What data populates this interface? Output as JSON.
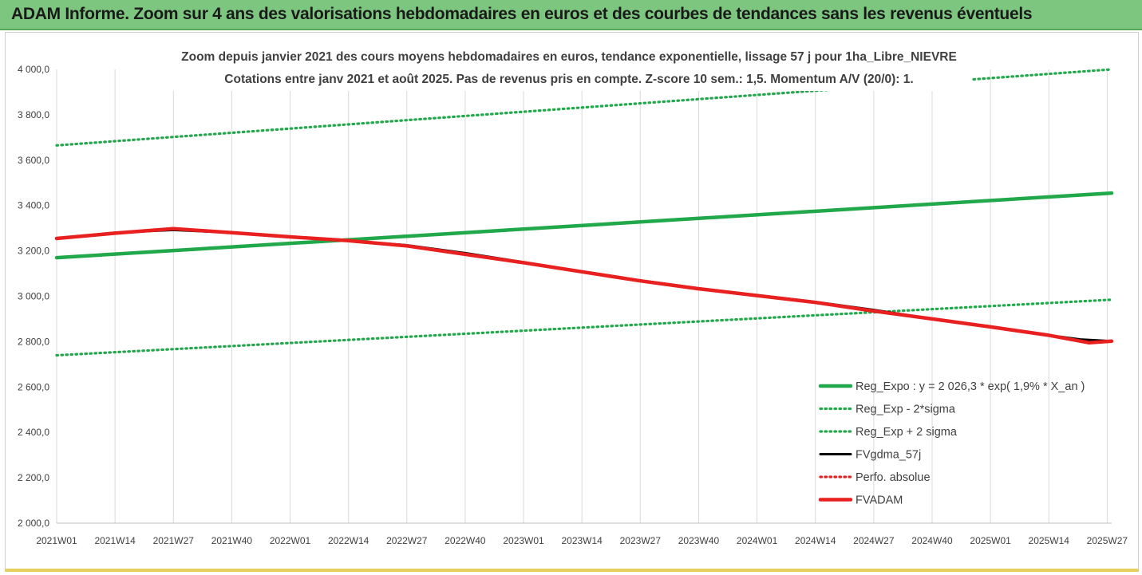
{
  "header": {
    "banner": "ADAM Informe. Zoom sur 4 ans des valorisations hebdomadaires en euros et des courbes de tendances sans les revenus éventuels"
  },
  "chart_data": {
    "type": "line",
    "title_lines": [
      "Zoom depuis janvier 2021 des cours moyens hebdomadaires en euros, tendance exponentielle, lissage 57 j pour 1ha_Libre_NIEVRE",
      "Cotations entre janv 2021 et août 2025.  Pas de revenus pris en compte. Z-score 10 sem.: 1,5. Momentum A/V (20/0): 1."
    ],
    "ylim": [
      2000,
      4000
    ],
    "y_ticks": [
      "4 000,0",
      "3 800,0",
      "3 600,0",
      "3 400,0",
      "3 200,0",
      "3 000,0",
      "2 800,0",
      "2 600,0",
      "2 400,0",
      "2 200,0",
      "2 000,0"
    ],
    "y_tick_values": [
      4000,
      3800,
      3600,
      3400,
      3200,
      3000,
      2800,
      2600,
      2400,
      2200,
      2000
    ],
    "x_ticks": [
      "2021W01",
      "2021W14",
      "2021W27",
      "2021W40",
      "2022W01",
      "2022W14",
      "2022W27",
      "2022W40",
      "2023W01",
      "2023W14",
      "2023W27",
      "2023W40",
      "2024W01",
      "2024W14",
      "2024W27",
      "2024W40",
      "2025W01",
      "2025W14",
      "2025W27"
    ],
    "x_end_week_index": 235,
    "grid": "vertical",
    "legend_position": "bottom-right",
    "series": [
      {
        "name": "Reg_Expo : y = 2 026,3 * exp( 1,9% *  X_an )",
        "color": "#21a84a",
        "style": "solid-thick",
        "points": [
          [
            0,
            3170
          ],
          [
            235,
            3455
          ]
        ]
      },
      {
        "name": "Reg_Exp - 2*sigma",
        "color": "#21a84a",
        "style": "dotted",
        "points": [
          [
            0,
            2740
          ],
          [
            235,
            2985
          ]
        ]
      },
      {
        "name": "Reg_Exp + 2 sigma",
        "color": "#21a84a",
        "style": "dotted",
        "points": [
          [
            0,
            3665
          ],
          [
            235,
            4000
          ]
        ]
      },
      {
        "name": "FVgdma_57j",
        "color": "#000000",
        "style": "solid",
        "points": [
          [
            0,
            3255
          ],
          [
            13,
            3280
          ],
          [
            26,
            3292
          ],
          [
            39,
            3280
          ],
          [
            52,
            3262
          ],
          [
            65,
            3245
          ],
          [
            78,
            3225
          ],
          [
            91,
            3190
          ],
          [
            104,
            3150
          ],
          [
            117,
            3110
          ],
          [
            130,
            3070
          ],
          [
            143,
            3035
          ],
          [
            156,
            3005
          ],
          [
            169,
            2975
          ],
          [
            182,
            2940
          ],
          [
            195,
            2900
          ],
          [
            208,
            2865
          ],
          [
            221,
            2828
          ],
          [
            228,
            2810
          ],
          [
            235,
            2802
          ]
        ]
      },
      {
        "name": "Perfo. absolue",
        "color": "#e8201f",
        "style": "dotted",
        "points": []
      },
      {
        "name": "FVADAM",
        "color": "#e8201f",
        "style": "solid-thick",
        "points": [
          [
            0,
            3255
          ],
          [
            13,
            3278
          ],
          [
            26,
            3298
          ],
          [
            39,
            3280
          ],
          [
            52,
            3262
          ],
          [
            65,
            3245
          ],
          [
            78,
            3222
          ],
          [
            91,
            3185
          ],
          [
            104,
            3148
          ],
          [
            117,
            3108
          ],
          [
            130,
            3068
          ],
          [
            143,
            3033
          ],
          [
            156,
            3003
          ],
          [
            169,
            2973
          ],
          [
            182,
            2935
          ],
          [
            195,
            2900
          ],
          [
            208,
            2865
          ],
          [
            221,
            2828
          ],
          [
            230,
            2795
          ],
          [
            235,
            2802
          ]
        ]
      }
    ]
  }
}
